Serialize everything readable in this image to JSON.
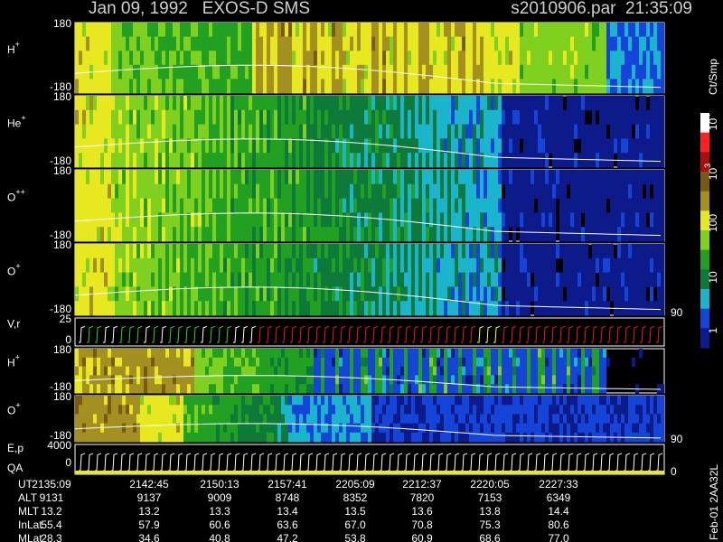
{
  "header": {
    "title": "Jan 09, 1992   EXOS-D SMS",
    "file": "s2010906.par  21:35:09"
  },
  "panels": [
    {
      "label": {
        "base": "H",
        "sup": "+"
      },
      "ticks": [
        "180",
        "-180"
      ]
    },
    {
      "label": {
        "base": "He",
        "sup": "+"
      },
      "ticks": [
        "180",
        "-180"
      ]
    },
    {
      "label": {
        "base": "O",
        "sup": "++"
      },
      "ticks": [
        "180",
        "-180"
      ]
    },
    {
      "label": {
        "base": "O",
        "sup": "+"
      },
      "ticks": [
        "180",
        "-180"
      ],
      "right": "90"
    },
    {
      "label": {
        "base": "V,r"
      },
      "ticks": [
        "25",
        "0"
      ]
    },
    {
      "label": {
        "base": "H",
        "sup": "+"
      },
      "ticks": [
        "180",
        "-180"
      ]
    },
    {
      "label": {
        "base": "O",
        "sup": "+"
      },
      "ticks": [
        "180",
        "-180"
      ],
      "right": "90"
    },
    {
      "label": {
        "base": "E,p",
        "line2": "QA"
      },
      "ticks": [
        "4000",
        "0"
      ],
      "right": "0"
    }
  ],
  "colorbar": {
    "unit": "Ct/Smp",
    "ticks": [
      {
        "base": "10",
        "sup": "4"
      },
      {
        "base": "10",
        "sup": "3"
      },
      {
        "base": "100"
      },
      {
        "base": "10"
      },
      {
        "base": "1"
      }
    ]
  },
  "footer": {
    "rows": [
      {
        "label": "UT",
        "values": [
          "2135:09",
          "2142:45",
          "2150:13",
          "2157:41",
          "2205:09",
          "2212:37",
          "2220:05",
          "2227:33"
        ]
      },
      {
        "label": "ALT",
        "values": [
          "9131",
          "9137",
          "9009",
          "8748",
          "8352",
          "7820",
          "7153",
          "6349"
        ]
      },
      {
        "label": "MLT",
        "values": [
          "13.2",
          "13.2",
          "13.3",
          "13.4",
          "13.5",
          "13.6",
          "13.8",
          "14.4"
        ]
      },
      {
        "label": "InLat",
        "values": [
          "55.4",
          "57.9",
          "60.6",
          "63.6",
          "67.0",
          "70.8",
          "75.3",
          "80.6"
        ]
      },
      {
        "label": "MLat",
        "values": [
          "28.3",
          "34.6",
          "40.8",
          "47.2",
          "53.8",
          "60.9",
          "68.6",
          "77.0"
        ]
      }
    ],
    "id": "Feb-01 2AA32L"
  }
}
